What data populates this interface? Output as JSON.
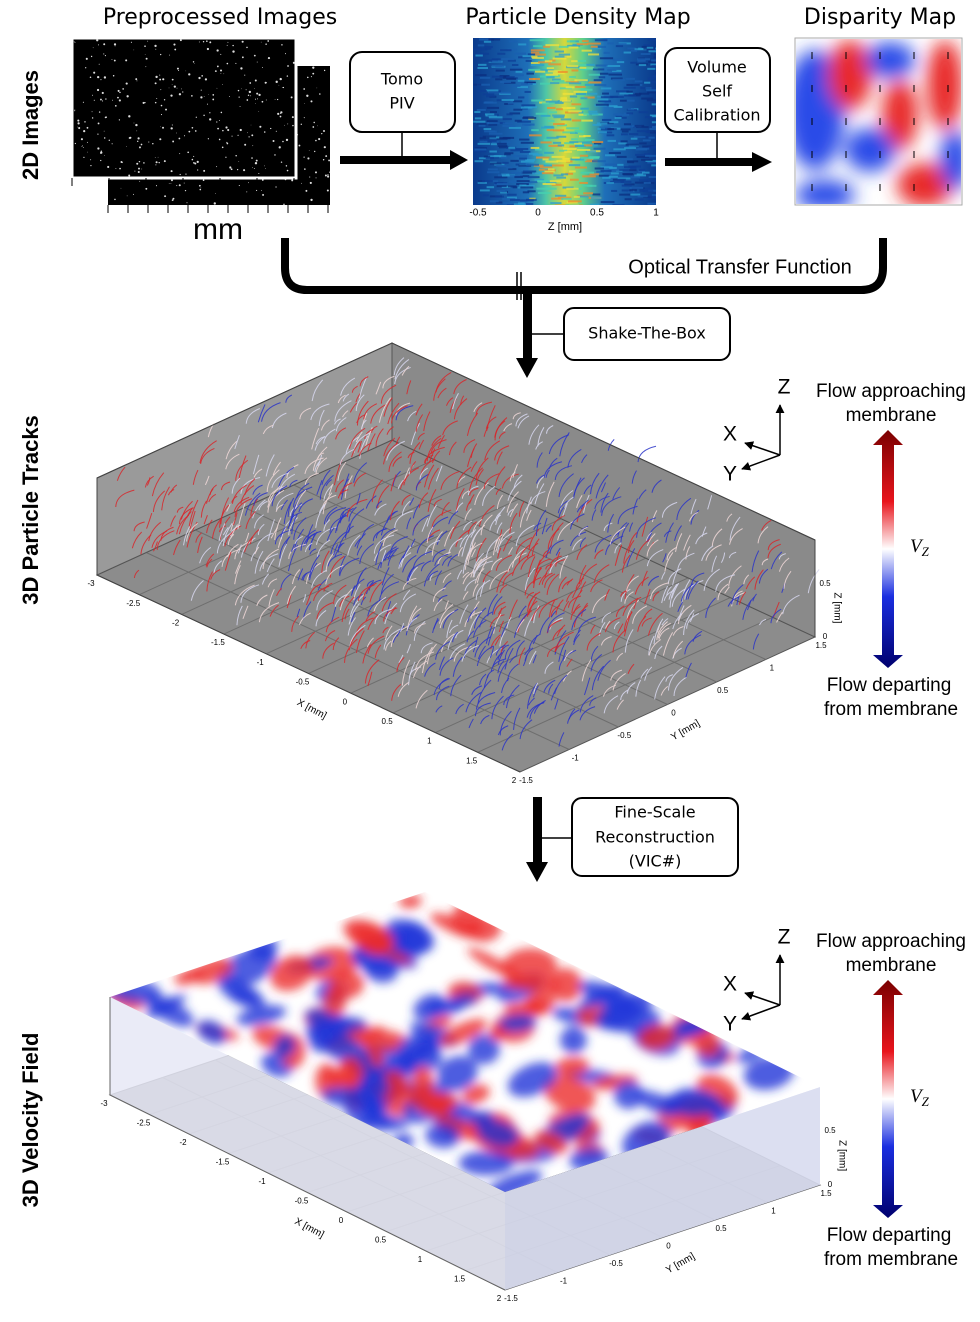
{
  "row_labels": [
    "2D Images",
    "3D Particle Tracks",
    "3D Velocity Field"
  ],
  "panels": {
    "preprocessed": {
      "title": "Preprocessed Images",
      "unit": "mm"
    },
    "density": {
      "title": "Particle Density Map",
      "xticks": [
        "-0.5",
        "0",
        "0.5",
        "1"
      ],
      "xlabel": "Z [mm]"
    },
    "disparity": {
      "title": "Disparity Map"
    }
  },
  "steps": [
    {
      "lines": [
        "Tomo",
        "PIV"
      ]
    },
    {
      "lines": [
        "Volume",
        "Self",
        "Calibration"
      ]
    },
    {
      "lines": [
        "Shake-The-Box"
      ]
    },
    {
      "lines": [
        "Fine-Scale",
        "Reconstruction",
        "(VIC#)"
      ]
    }
  ],
  "otf_label": "Optical Transfer Function",
  "plots": [
    {
      "x_ticks": [
        "-3",
        "-2.5",
        "-2",
        "-1.5",
        "-1",
        "-0.5",
        "0",
        "0.5",
        "1",
        "1.5",
        "2"
      ],
      "x_label": "X [mm]",
      "y_ticks": [
        "-1.5",
        "-1",
        "-0.5",
        "0",
        "0.5",
        "1",
        "1.5"
      ],
      "y_label": "Y [mm]",
      "z_ticks": [
        "0",
        "0.5"
      ],
      "z_label": "Z [mm]",
      "axes": {
        "z": "Z",
        "x": "X",
        "y": "Y"
      },
      "legend": {
        "top": [
          "Flow approaching",
          "membrane"
        ],
        "symbol": "V",
        "sub": "Z",
        "bottom": [
          "Flow departing",
          "from membrane"
        ]
      }
    },
    {
      "x_ticks": [
        "-3",
        "-2.5",
        "-2",
        "-1.5",
        "-1",
        "-0.5",
        "0",
        "0.5",
        "1",
        "1.5",
        "2"
      ],
      "x_label": "X [mm]",
      "y_ticks": [
        "-1.5",
        "-1",
        "-0.5",
        "0",
        "0.5",
        "1",
        "1.5"
      ],
      "y_label": "Y [mm]",
      "z_ticks": [
        "0",
        "0.5"
      ],
      "z_label": "Z [mm]",
      "axes": {
        "z": "Z",
        "x": "X",
        "y": "Y"
      },
      "legend": {
        "top": [
          "Flow approaching",
          "membrane"
        ],
        "symbol": "V",
        "sub": "Z",
        "bottom": [
          "Flow departing",
          "from membrane"
        ]
      }
    }
  ]
}
